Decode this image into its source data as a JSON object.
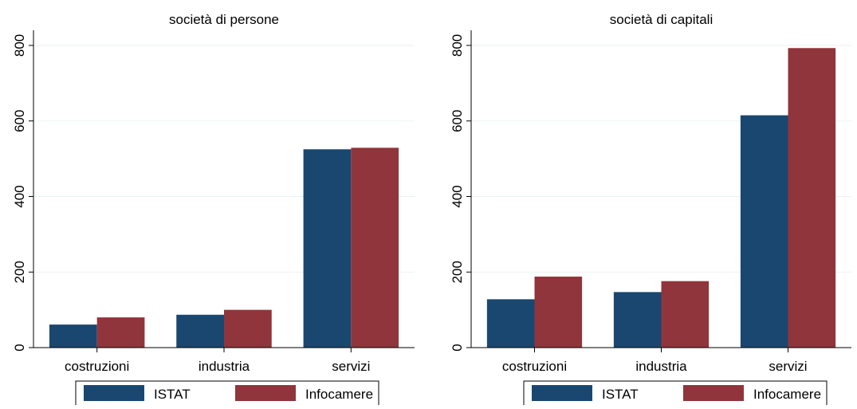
{
  "colors": {
    "istat": "#1a476f",
    "infocamere": "#90353b",
    "grid": "#eaf2f3",
    "axis": "#000000"
  },
  "chart_data": [
    {
      "type": "bar",
      "title": "società di persone",
      "categories": [
        "costruzioni",
        "industria",
        "servizi"
      ],
      "series": [
        {
          "name": "ISTAT",
          "values": [
            61,
            87,
            525
          ]
        },
        {
          "name": "Infocamere",
          "values": [
            80,
            100,
            529
          ]
        }
      ],
      "ylim": [
        0,
        840
      ],
      "yticks": [
        "0",
        "200",
        "400",
        "600",
        "800"
      ],
      "xlabel": "",
      "ylabel": "",
      "grid": true,
      "legend": "bottom"
    },
    {
      "type": "bar",
      "title": "società di capitali",
      "categories": [
        "costruzioni",
        "industria",
        "servizi"
      ],
      "series": [
        {
          "name": "ISTAT",
          "values": [
            128,
            147,
            615
          ]
        },
        {
          "name": "Infocamere",
          "values": [
            188,
            176,
            793
          ]
        }
      ],
      "ylim": [
        0,
        840
      ],
      "yticks": [
        "0",
        "200",
        "400",
        "600",
        "800"
      ],
      "xlabel": "",
      "ylabel": "",
      "grid": true,
      "legend": "bottom"
    }
  ]
}
